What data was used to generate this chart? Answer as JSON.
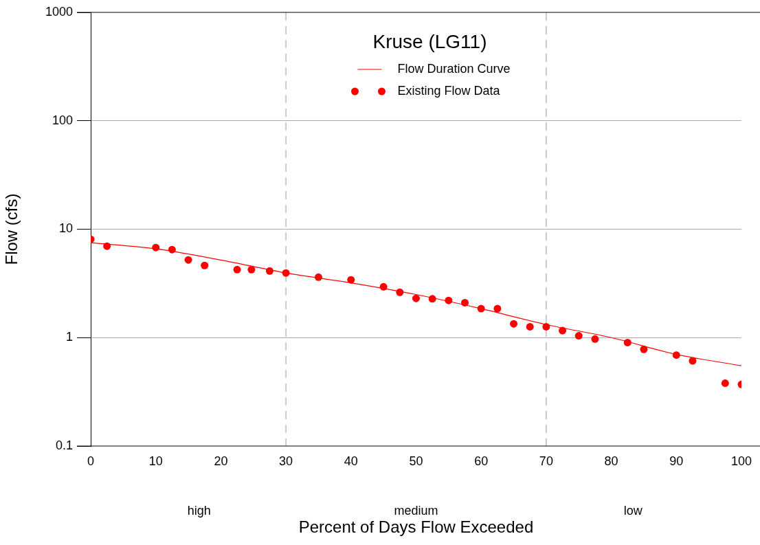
{
  "chart_data": {
    "type": "scatter",
    "title": "Kruse (LG11)",
    "xlabel": "Percent of Days Flow Exceeded",
    "ylabel": "Flow (cfs)",
    "log": "y",
    "xlim": [
      0,
      100
    ],
    "xticks": [
      0,
      10,
      20,
      30,
      40,
      50,
      60,
      70,
      80,
      90,
      100
    ],
    "ylim": [
      0.1,
      1000
    ],
    "yticks": [
      0.1,
      1,
      10,
      100,
      1000
    ],
    "grid": "y",
    "legend": "top",
    "marker": "circle",
    "series": [
      {
        "name": "Flow Duration Curve",
        "type": "line",
        "color": "#ff0000",
        "marker": "none",
        "x": [
          0,
          10,
          20,
          30,
          40,
          50,
          60,
          70,
          80,
          90,
          100
        ],
        "values": [
          7.5,
          6.6,
          5.2,
          3.95,
          3.2,
          2.5,
          1.85,
          1.32,
          1.0,
          0.7,
          0.55
        ]
      },
      {
        "name": "Existing Flow Data",
        "color": "#ff0000",
        "x": [
          0,
          2.5,
          10,
          12.5,
          15,
          17.5,
          22.5,
          24.7,
          27.5,
          30,
          35,
          40,
          45,
          47.5,
          50,
          52.5,
          55,
          57.5,
          60,
          62.5,
          65,
          67.5,
          70,
          72.5,
          75,
          77.5,
          82.5,
          85,
          90,
          92.5,
          97.5,
          100
        ],
        "values": [
          8.07,
          6.97,
          6.77,
          6.48,
          5.21,
          4.63,
          4.24,
          4.24,
          4.12,
          3.95,
          3.61,
          3.41,
          2.94,
          2.62,
          2.3,
          2.28,
          2.2,
          2.1,
          1.85,
          1.85,
          1.34,
          1.26,
          1.26,
          1.16,
          1.04,
          0.97,
          0.9,
          0.78,
          0.69,
          0.61,
          0.38,
          0.37
        ]
      }
    ],
    "ref_lines": [
      {
        "axis": "x",
        "value": 30,
        "line_style": "dashed",
        "color": "#aaaaaa"
      },
      {
        "axis": "x",
        "value": 70,
        "line_style": "dashed",
        "color": "#aaaaaa"
      }
    ],
    "annotations": [
      "high",
      "medium",
      "low"
    ]
  }
}
